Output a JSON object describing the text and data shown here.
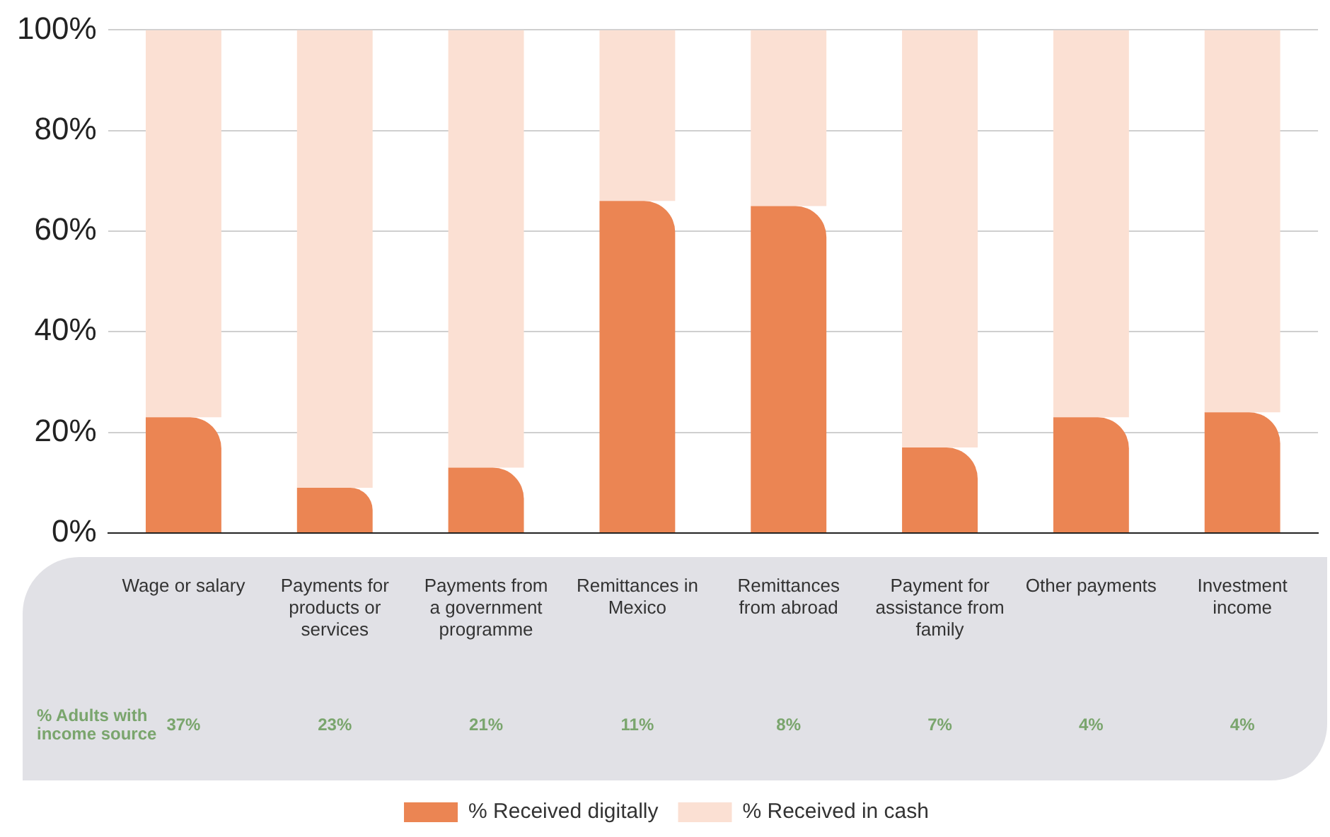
{
  "chart_data": {
    "type": "bar",
    "stacked": true,
    "categories": [
      "Wage or salary",
      "Payments for products or services",
      "Payments from a government programme",
      "Remittances in Mexico",
      "Remittances from abroad",
      "Payment for assistance from family",
      "Other payments",
      "Investment income"
    ],
    "series": [
      {
        "name": "% Received digitally",
        "color": "#eb8553",
        "values": [
          23,
          9,
          13,
          66,
          65,
          17,
          23,
          24
        ]
      },
      {
        "name": "% Received in cash",
        "color": "#fbe0d3",
        "values": [
          77,
          91,
          87,
          34,
          35,
          83,
          77,
          76
        ]
      }
    ],
    "ylim": [
      0,
      100
    ],
    "yticks": [
      {
        "value": 0,
        "label": "0%"
      },
      {
        "value": 20,
        "label": "20%"
      },
      {
        "value": 40,
        "label": "40%"
      },
      {
        "value": 60,
        "label": "60%"
      },
      {
        "value": 80,
        "label": "80%"
      },
      {
        "value": 100,
        "label": "100%"
      }
    ],
    "grid": "y",
    "legend": "bottom",
    "annotations": [
      "% Adults with income source",
      "37%",
      "23%",
      "21%",
      "11%",
      "8%",
      "7%",
      "4%",
      "4%"
    ]
  }
}
